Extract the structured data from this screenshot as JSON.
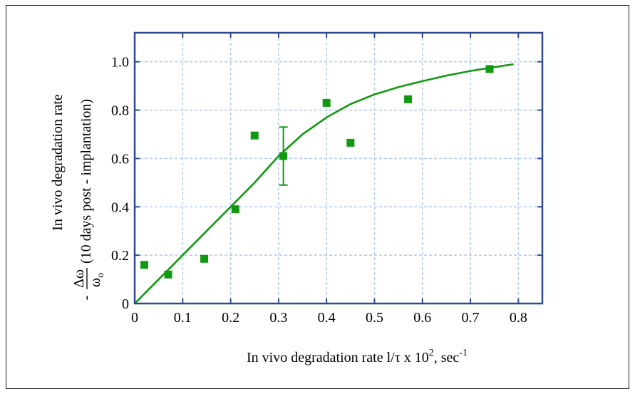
{
  "chart_data": {
    "type": "scatter",
    "xlabel": {
      "main": "In vivo degradation rate l/",
      "tau": "τ",
      "times": " x 10",
      "sup": "2",
      "unit": ", sec",
      "unit_sup": "-1"
    },
    "ylabel": {
      "line1": "In vivo degradation rate",
      "minus": "-",
      "numerator": "Δω",
      "denominator": "ω",
      "denominator_sub": "o",
      "note": "(10 days post - implantation)"
    },
    "xlim": [
      0,
      0.85
    ],
    "ylim": [
      0,
      1.12
    ],
    "x_ticks": [
      0,
      0.1,
      0.2,
      0.3,
      0.4,
      0.5,
      0.6,
      0.7,
      0.8
    ],
    "x_tick_labels": [
      "0",
      "0.1",
      "0.2",
      "0.3",
      "0.4",
      "0.5",
      "0.6",
      "0.7",
      "0.8"
    ],
    "y_ticks": [
      0,
      0.2,
      0.4,
      0.6,
      0.8,
      1.0
    ],
    "y_tick_labels": [
      "0",
      "0.2",
      "0.4",
      "0.6",
      "0.8",
      "1.0"
    ],
    "grid": true,
    "series": [
      {
        "kind": "points",
        "x": [
          0.02,
          0.07,
          0.145,
          0.21,
          0.25,
          0.31,
          0.4,
          0.45,
          0.57,
          0.74
        ],
        "y": [
          0.16,
          0.12,
          0.185,
          0.39,
          0.695,
          0.61,
          0.83,
          0.665,
          0.845,
          0.97
        ]
      },
      {
        "kind": "line",
        "x": [
          0,
          0.05,
          0.1,
          0.15,
          0.2,
          0.25,
          0.3,
          0.35,
          0.4,
          0.45,
          0.5,
          0.55,
          0.6,
          0.65,
          0.7,
          0.75,
          0.79
        ],
        "y": [
          0,
          0.1,
          0.2,
          0.3,
          0.4,
          0.5,
          0.61,
          0.7,
          0.77,
          0.825,
          0.865,
          0.895,
          0.92,
          0.943,
          0.962,
          0.978,
          0.99
        ]
      }
    ],
    "error_bars": [
      {
        "x": 0.31,
        "y": 0.61,
        "low": 0.49,
        "high": 0.73
      }
    ],
    "colors": {
      "data": "#119911",
      "axis": "#2c4a8c",
      "grid": "#b5cdf0"
    }
  }
}
